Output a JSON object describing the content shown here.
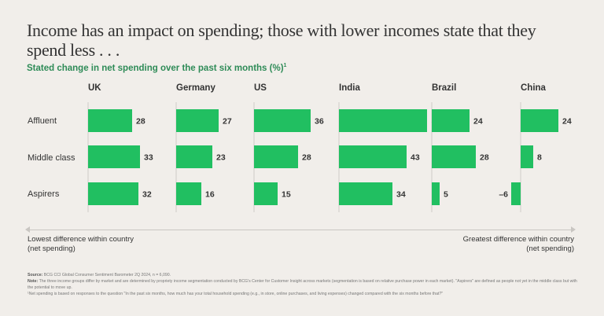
{
  "header": {
    "title": "Income has an impact on spending; those with lower incomes state that they spend less . . .",
    "subtitle": "Stated change in net spending over the past six months (%)",
    "subtitle_footnote": "1"
  },
  "chart_data": {
    "type": "bar",
    "orientation": "horizontal",
    "title": "Stated change in net spending over the past six months (%)",
    "categories": [
      "Affluent",
      "Middle class",
      "Aspirers"
    ],
    "panels": [
      {
        "name": "UK",
        "values": [
          28,
          33,
          32
        ]
      },
      {
        "name": "Germany",
        "values": [
          27,
          23,
          16
        ]
      },
      {
        "name": "US",
        "values": [
          36,
          28,
          15
        ]
      },
      {
        "name": "India",
        "values": [
          56,
          43,
          34
        ]
      },
      {
        "name": "Brazil",
        "values": [
          24,
          28,
          5
        ]
      },
      {
        "name": "China",
        "values": [
          24,
          8,
          -6
        ]
      }
    ],
    "bar_color": "#21bf61",
    "grid": false,
    "legend": "none"
  },
  "axis_note": {
    "low_line1": "Lowest difference within country",
    "low_line2": "(net spending)",
    "high_line1": "Greatest difference within country",
    "high_line2": "(net spending)"
  },
  "notes": {
    "source_label": "Source:",
    "source": "BCG CCI Global Consumer Sentiment Barometer 2Q 2024, n = 6,090.",
    "note_label": "Note:",
    "note": "The three income groups differ by market and are determined by propriety income segmentation conducted by BCG's Center for Customer Insight across markets (segmentation is based on relative purchase power in each market). \"Aspirers\" are defined as people not yet in the middle class but with the potential to move up.",
    "footnote": "¹Net spending is based on responses to the question \"In the past six months, how much has your total household spending (e.g., in store, online purchases, and living expenses) changed compared with the six months before that?\""
  }
}
